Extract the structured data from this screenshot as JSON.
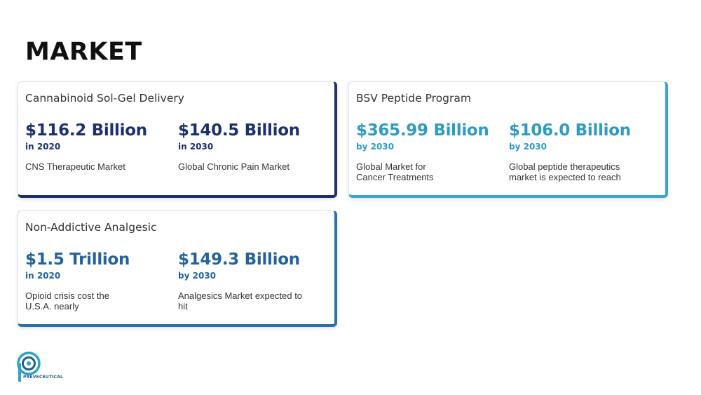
{
  "page": {
    "title": "MARKET"
  },
  "cards": [
    {
      "title": "Cannabinoid Sol-Gel Delivery",
      "stats": [
        {
          "value": "$116.2 Billion",
          "period": "in 2020",
          "desc": "CNS Therapeutic Market"
        },
        {
          "value": "$140.5 Billion",
          "period": "in 2030",
          "desc": "Global Chronic Pain Market"
        }
      ]
    },
    {
      "title": "BSV Peptide Program",
      "stats": [
        {
          "value": "$365.99 Billion",
          "period": "by 2030",
          "desc": "Global Market for Cancer Treatments"
        },
        {
          "value": "$106.0 Billion",
          "period": "by 2030",
          "desc": "Global peptide therapeutics market is expected to reach"
        }
      ]
    },
    {
      "title": "Non-Addictive Analgesic",
      "stats": [
        {
          "value": "$1.5 Trillion",
          "period": "in 2020",
          "desc": "Opioid crisis cost the U.S.A. nearly"
        },
        {
          "value": "$149.3 Billion",
          "period": "by 2030",
          "desc": "Analgesics Market expected to hit"
        }
      ]
    }
  ],
  "logo": {
    "name": "PREVECEUTICAL",
    "icon": "preveceutical-logo-icon"
  },
  "colors": {
    "navy": "#1c2f6e",
    "cyan": "#2e9bc3",
    "blue": "#22639f"
  }
}
